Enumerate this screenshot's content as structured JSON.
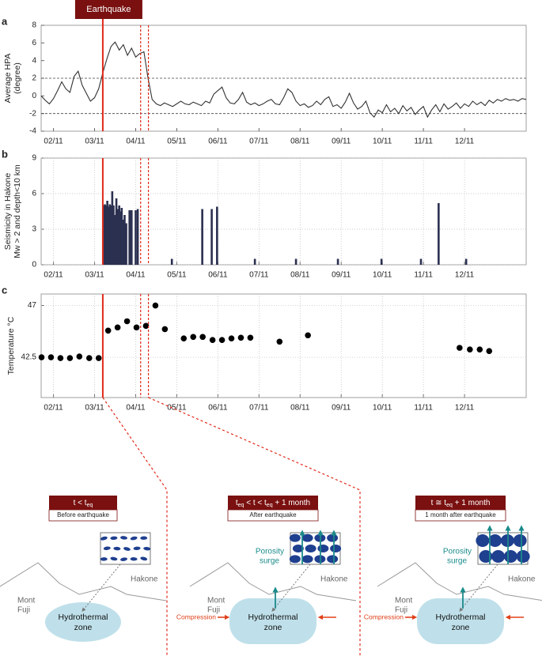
{
  "chart_data": [
    {
      "type": "line",
      "label": "a",
      "annotation": "Earthquake",
      "ylabel": [
        "Average HPA",
        "(degree)"
      ],
      "x": [
        1.7,
        1.8,
        1.9,
        2.0,
        2.1,
        2.2,
        2.3,
        2.4,
        2.5,
        2.6,
        2.7,
        2.8,
        2.9,
        3.0,
        3.1,
        3.2,
        3.3,
        3.4,
        3.5,
        3.6,
        3.7,
        3.8,
        3.9,
        4.0,
        4.1,
        4.2,
        4.3,
        4.4,
        4.5,
        4.6,
        4.7,
        4.8,
        4.9,
        5.0,
        5.1,
        5.2,
        5.3,
        5.4,
        5.5,
        5.6,
        5.7,
        5.8,
        5.9,
        6.0,
        6.1,
        6.2,
        6.3,
        6.4,
        6.5,
        6.6,
        6.7,
        6.8,
        6.9,
        7.0,
        7.1,
        7.2,
        7.3,
        7.4,
        7.5,
        7.6,
        7.7,
        7.8,
        7.9,
        8.0,
        8.1,
        8.2,
        8.3,
        8.4,
        8.5,
        8.6,
        8.7,
        8.8,
        8.9,
        9.0,
        9.1,
        9.2,
        9.3,
        9.4,
        9.5,
        9.6,
        9.7,
        9.8,
        9.9,
        10.0,
        10.1,
        10.2,
        10.3,
        10.4,
        10.5,
        10.6,
        10.7,
        10.8,
        10.9,
        11.0,
        11.1,
        11.2,
        11.3,
        11.4,
        11.5,
        11.6,
        11.7,
        11.8,
        11.9,
        12.0,
        12.1,
        12.2,
        12.3,
        12.4,
        12.5,
        12.6,
        12.7,
        12.8,
        12.9,
        13.0,
        13.1,
        13.2,
        13.3,
        13.4,
        13.5
      ],
      "values": [
        0,
        -0.5,
        -0.9,
        -0.3,
        0.6,
        1.6,
        0.8,
        0.4,
        2.2,
        2.8,
        1.2,
        0.3,
        -0.6,
        -0.2,
        0.8,
        2.6,
        4.2,
        5.6,
        6.1,
        5.2,
        5.8,
        4.6,
        5.4,
        4.4,
        4.8,
        5.0,
        2.0,
        -0.4,
        -0.9,
        -1.1,
        -0.8,
        -1.0,
        -1.2,
        -0.9,
        -0.6,
        -0.9,
        -1.0,
        -0.7,
        -0.9,
        -1.1,
        -0.6,
        -0.8,
        0.2,
        0.6,
        1.0,
        -0.2,
        -0.8,
        -0.9,
        -0.4,
        0.4,
        -0.7,
        -1.0,
        -0.8,
        -1.1,
        -0.9,
        -0.6,
        -0.4,
        -0.9,
        -1.0,
        -0.2,
        0.8,
        0.4,
        -0.6,
        -1.1,
        -0.9,
        -1.3,
        -1.1,
        -0.6,
        -1.0,
        -0.4,
        -0.1,
        -1.2,
        -1.0,
        -1.4,
        -0.7,
        0.3,
        -0.8,
        -1.5,
        -1.2,
        -0.6,
        -1.9,
        -2.4,
        -1.6,
        -1.9,
        -1.0,
        -1.8,
        -1.4,
        -2.0,
        -1.1,
        -1.7,
        -1.3,
        -2.1,
        -1.6,
        -1.2,
        -2.4,
        -1.6,
        -1.0,
        -1.8,
        -0.9,
        -1.5,
        -1.2,
        -0.8,
        -1.4,
        -0.9,
        -1.2,
        -0.6,
        -1.0,
        -0.7,
        -1.1,
        -0.5,
        -0.8,
        -0.4,
        -0.6,
        -0.3,
        -0.5,
        -0.4,
        -0.6,
        -0.3,
        -0.4
      ],
      "color": "#333333",
      "xlim": [
        1.7,
        13.5
      ],
      "ylim": [
        -4,
        8
      ],
      "yticks": [
        -4,
        -2,
        0,
        2,
        4,
        6,
        8
      ],
      "xticks": [
        {
          "value": 2,
          "label": "02/11"
        },
        {
          "value": 3,
          "label": "03/11"
        },
        {
          "value": 4,
          "label": "04/11"
        },
        {
          "value": 5,
          "label": "05/11"
        },
        {
          "value": 6,
          "label": "06/11"
        },
        {
          "value": 7,
          "label": "07/11"
        },
        {
          "value": 8,
          "label": "08/11"
        },
        {
          "value": 9,
          "label": "09/11"
        },
        {
          "value": 10,
          "label": "10/11"
        },
        {
          "value": 11,
          "label": "11/11"
        },
        {
          "value": 12,
          "label": "12/11"
        }
      ],
      "grid": false,
      "hlines": [
        2,
        -2
      ],
      "earthquake_x": 3.2,
      "window_x": [
        4.12,
        4.31
      ]
    },
    {
      "type": "bar",
      "label": "b",
      "ylabel": [
        "Seismicity in Hakone",
        "Mw > 2 and depth<10 km"
      ],
      "x": [
        3.22,
        3.25,
        3.28,
        3.31,
        3.34,
        3.37,
        3.4,
        3.43,
        3.46,
        3.5,
        3.53,
        3.56,
        3.6,
        3.63,
        3.66,
        3.7,
        3.73,
        3.77,
        3.85,
        3.9,
        4.0,
        4.05,
        4.88,
        5.62,
        5.85,
        5.98,
        6.9,
        7.9,
        8.92,
        9.98,
        10.94,
        11.37,
        12.04
      ],
      "values": [
        5.0,
        5.1,
        5.0,
        5.4,
        4.9,
        5.1,
        5.0,
        6.2,
        5.0,
        4.2,
        5.6,
        4.7,
        5.0,
        4.5,
        4.8,
        3.8,
        4.2,
        3.5,
        4.6,
        4.6,
        4.6,
        4.7,
        0.5,
        4.7,
        4.7,
        4.9,
        0.5,
        0.5,
        0.5,
        0.5,
        0.5,
        5.2,
        0.5
      ],
      "color": "#2b3050",
      "xlim": [
        1.7,
        13.5
      ],
      "ylim": [
        0,
        9
      ],
      "yticks": [
        0,
        3,
        6,
        9
      ],
      "xticks": [
        {
          "value": 2,
          "label": "02/11"
        },
        {
          "value": 3,
          "label": "03/11"
        },
        {
          "value": 4,
          "label": "04/11"
        },
        {
          "value": 5,
          "label": "05/11"
        },
        {
          "value": 6,
          "label": "06/11"
        },
        {
          "value": 7,
          "label": "07/11"
        },
        {
          "value": 8,
          "label": "08/11"
        },
        {
          "value": 9,
          "label": "09/11"
        },
        {
          "value": 10,
          "label": "10/11"
        },
        {
          "value": 11,
          "label": "11/11"
        },
        {
          "value": 12,
          "label": "12/11"
        }
      ],
      "grid": true,
      "earthquake_x": 3.2,
      "window_x": [
        4.12,
        4.31
      ]
    },
    {
      "type": "scatter",
      "label": "c",
      "ylabel": [
        "Temperature °C"
      ],
      "x": [
        1.71,
        1.94,
        2.17,
        2.4,
        2.63,
        2.87,
        3.1,
        3.33,
        3.56,
        3.79,
        4.02,
        4.25,
        4.48,
        4.71,
        5.17,
        5.4,
        5.63,
        5.87,
        6.1,
        6.33,
        6.56,
        6.79,
        7.5,
        8.19,
        11.88,
        12.13,
        12.37,
        12.6
      ],
      "values": [
        42.5,
        42.5,
        42.43,
        42.43,
        42.57,
        42.43,
        42.43,
        44.82,
        45.09,
        45.63,
        45.09,
        45.23,
        47.0,
        44.95,
        44.14,
        44.27,
        44.27,
        44.0,
        44.0,
        44.14,
        44.2,
        44.2,
        43.86,
        44.41,
        43.32,
        43.18,
        43.18,
        43.04
      ],
      "color": "#000000",
      "xlim": [
        1.7,
        13.5
      ],
      "ylim": [
        39,
        48
      ],
      "yticks": [
        42.5,
        47
      ],
      "xticks": [
        {
          "value": 2,
          "label": "02/11"
        },
        {
          "value": 3,
          "label": "03/11"
        },
        {
          "value": 4,
          "label": "04/11"
        },
        {
          "value": 5,
          "label": "05/11"
        },
        {
          "value": 6,
          "label": "06/11"
        },
        {
          "value": 7,
          "label": "07/11"
        },
        {
          "value": 8,
          "label": "08/11"
        },
        {
          "value": 9,
          "label": "09/11"
        },
        {
          "value": 10,
          "label": "10/11"
        },
        {
          "value": 11,
          "label": "11/11"
        },
        {
          "value": 12,
          "label": "12/11"
        }
      ],
      "grid": true,
      "earthquake_x": 3.2,
      "window_x": [
        4.12,
        4.31
      ]
    }
  ],
  "diagram": {
    "panels": [
      {
        "title": [
          "t < t",
          "eq"
        ],
        "subtitle": "Before earthquake",
        "mountain": [
          "Mont",
          "Fuji"
        ],
        "hakone": "Hakone",
        "zone": [
          "Hydrothermal",
          "zone"
        ]
      },
      {
        "title": [
          "t",
          "eq",
          " < t < t",
          "eq",
          " + 1 month"
        ],
        "subtitle": "After earthquake",
        "mountain": [
          "Mont",
          "Fuji"
        ],
        "hakone": "Hakone",
        "zone": [
          "Hydrothermal",
          "zone"
        ],
        "porosity": [
          "Porosity",
          "surge"
        ],
        "compression": "Compression"
      },
      {
        "title": [
          "t ≅ t",
          "eq",
          " + 1 month"
        ],
        "subtitle": "1 month after earthquake",
        "mountain": [
          "Mont",
          "Fuji"
        ],
        "hakone": "Hakone",
        "zone": [
          "Hydrothermal",
          "zone"
        ],
        "porosity": [
          "Porosity",
          "surge"
        ],
        "compression": "Compression"
      }
    ]
  }
}
